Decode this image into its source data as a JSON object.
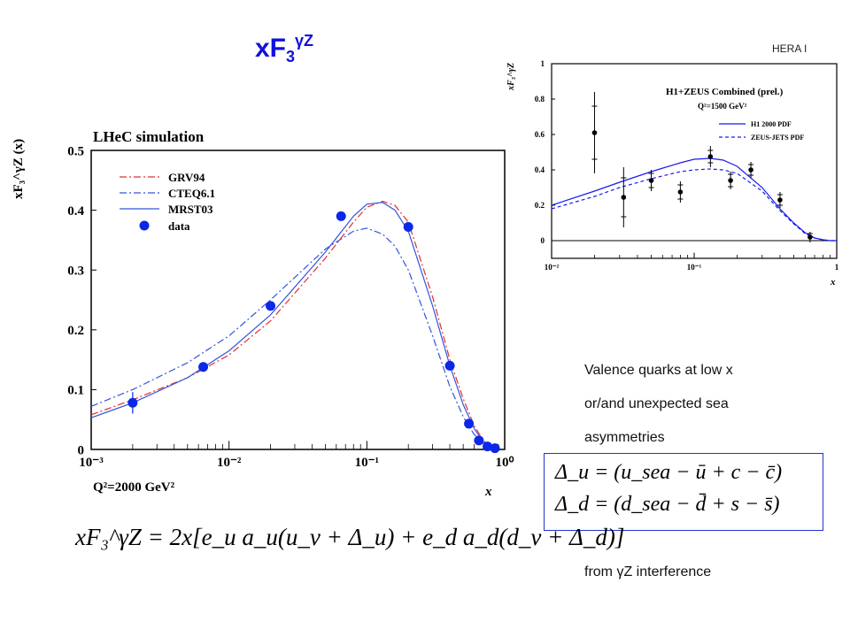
{
  "slide": {
    "title_main": "xF",
    "title_sub": "3",
    "title_sup": "γZ",
    "hera_tag": "HERA I",
    "notes": [
      "Valence quarks at low x",
      "or/and unexpected sea",
      "asymmetries"
    ],
    "footer_note": "from  γZ interference",
    "main_formula": "xF₃^γZ = 2x[e_u a_u(u_v + Δ_u) + e_d a_d(d_v + Δ_d)]",
    "delta_u": "Δ_u = (u_sea − ū + c − c̄)",
    "delta_d": "Δ_d = (d_sea − d̄ + s − s̄)"
  },
  "chart_data": [
    {
      "type": "line",
      "title": "LHeC simulation",
      "xlabel": "x",
      "ylabel": "xF₃^γZ (x)",
      "x_scale": "log",
      "xlim": [
        0.001,
        1
      ],
      "ylim": [
        0,
        0.5
      ],
      "x_ticks": [
        "10⁻³",
        "10⁻²",
        "10⁻¹",
        "10⁰"
      ],
      "y_ticks": [
        "0",
        "0.1",
        "0.2",
        "0.3",
        "0.4",
        "0.5"
      ],
      "annotation": "Q²=2000 GeV²",
      "legend_position": "top-left",
      "series": [
        {
          "name": "GRV94",
          "style": "dash-dot",
          "color": "#e03030",
          "x": [
            0.001,
            0.002,
            0.005,
            0.01,
            0.02,
            0.05,
            0.08,
            0.1,
            0.13,
            0.16,
            0.2,
            0.3,
            0.4,
            0.5,
            0.6,
            0.7,
            0.8,
            0.9
          ],
          "y": [
            0.058,
            0.083,
            0.12,
            0.158,
            0.215,
            0.32,
            0.38,
            0.405,
            0.415,
            0.408,
            0.38,
            0.255,
            0.15,
            0.085,
            0.04,
            0.015,
            0.004,
            0.0
          ]
        },
        {
          "name": "CTEQ6.1",
          "style": "dash-dot",
          "color": "#3355dd",
          "x": [
            0.001,
            0.002,
            0.005,
            0.01,
            0.02,
            0.05,
            0.08,
            0.1,
            0.13,
            0.16,
            0.2,
            0.3,
            0.4,
            0.5,
            0.6,
            0.7,
            0.8,
            0.9
          ],
          "y": [
            0.072,
            0.1,
            0.145,
            0.19,
            0.25,
            0.335,
            0.365,
            0.37,
            0.36,
            0.34,
            0.3,
            0.19,
            0.105,
            0.055,
            0.025,
            0.01,
            0.003,
            0.0
          ]
        },
        {
          "name": "MRST03",
          "style": "solid",
          "color": "#3355dd",
          "x": [
            0.001,
            0.002,
            0.005,
            0.01,
            0.02,
            0.05,
            0.08,
            0.1,
            0.13,
            0.16,
            0.2,
            0.3,
            0.4,
            0.5,
            0.6,
            0.7,
            0.8,
            0.9
          ],
          "y": [
            0.053,
            0.078,
            0.12,
            0.165,
            0.225,
            0.33,
            0.39,
            0.41,
            0.413,
            0.4,
            0.365,
            0.24,
            0.14,
            0.075,
            0.035,
            0.012,
            0.003,
            0.0
          ]
        }
      ],
      "points": {
        "name": "data",
        "color": "#0a28e8",
        "x": [
          0.002,
          0.0065,
          0.02,
          0.065,
          0.2,
          0.4,
          0.55,
          0.65,
          0.75,
          0.85
        ],
        "y": [
          0.078,
          0.138,
          0.24,
          0.39,
          0.372,
          0.14,
          0.043,
          0.015,
          0.005,
          0.002
        ],
        "err": [
          0.018,
          0.008,
          0.005,
          0.004,
          0.006,
          0.006,
          0.005,
          0.004,
          0.003,
          0.002
        ]
      }
    },
    {
      "type": "line",
      "title": "H1+ZEUS Combined (prel.)",
      "xlabel": "x",
      "ylabel": "xF₃^γZ",
      "x_scale": "log",
      "xlim": [
        0.01,
        1
      ],
      "ylim": [
        -0.1,
        1.0
      ],
      "x_ticks": [
        "10⁻²",
        "10⁻¹",
        "1"
      ],
      "y_ticks": [
        "0",
        "0.2",
        "0.4",
        "0.6",
        "0.8",
        "1"
      ],
      "annotation": "Q²=1500 GeV²",
      "legend_position": "top-right",
      "series": [
        {
          "name": "H1 2000 PDF",
          "style": "solid",
          "color": "#1a1aee",
          "x": [
            0.01,
            0.02,
            0.03,
            0.05,
            0.08,
            0.1,
            0.13,
            0.16,
            0.2,
            0.3,
            0.4,
            0.5,
            0.6,
            0.7,
            0.8,
            0.9,
            1.0
          ],
          "y": [
            0.2,
            0.28,
            0.33,
            0.39,
            0.44,
            0.46,
            0.465,
            0.455,
            0.42,
            0.3,
            0.18,
            0.1,
            0.045,
            0.015,
            0.005,
            0.0,
            0.0
          ]
        },
        {
          "name": "ZEUS-JETS PDF",
          "style": "dashed",
          "color": "#1a1aee",
          "x": [
            0.01,
            0.02,
            0.03,
            0.05,
            0.08,
            0.1,
            0.13,
            0.16,
            0.2,
            0.3,
            0.4,
            0.5,
            0.6,
            0.7,
            0.8,
            0.9,
            1.0
          ],
          "y": [
            0.18,
            0.25,
            0.3,
            0.35,
            0.39,
            0.4,
            0.405,
            0.4,
            0.38,
            0.28,
            0.17,
            0.095,
            0.04,
            0.015,
            0.005,
            0.0,
            0.0
          ]
        }
      ],
      "points": {
        "name": "H1+ZEUS data",
        "color": "#000000",
        "x": [
          0.02,
          0.032,
          0.05,
          0.08,
          0.13,
          0.18,
          0.25,
          0.4,
          0.65
        ],
        "y": [
          0.61,
          0.245,
          0.34,
          0.275,
          0.475,
          0.34,
          0.4,
          0.23,
          0.02
        ],
        "err_inner": [
          0.15,
          0.11,
          0.04,
          0.04,
          0.035,
          0.035,
          0.03,
          0.03,
          0.02
        ],
        "err_outer": [
          0.23,
          0.17,
          0.06,
          0.06,
          0.06,
          0.05,
          0.045,
          0.045,
          0.03
        ]
      }
    }
  ]
}
